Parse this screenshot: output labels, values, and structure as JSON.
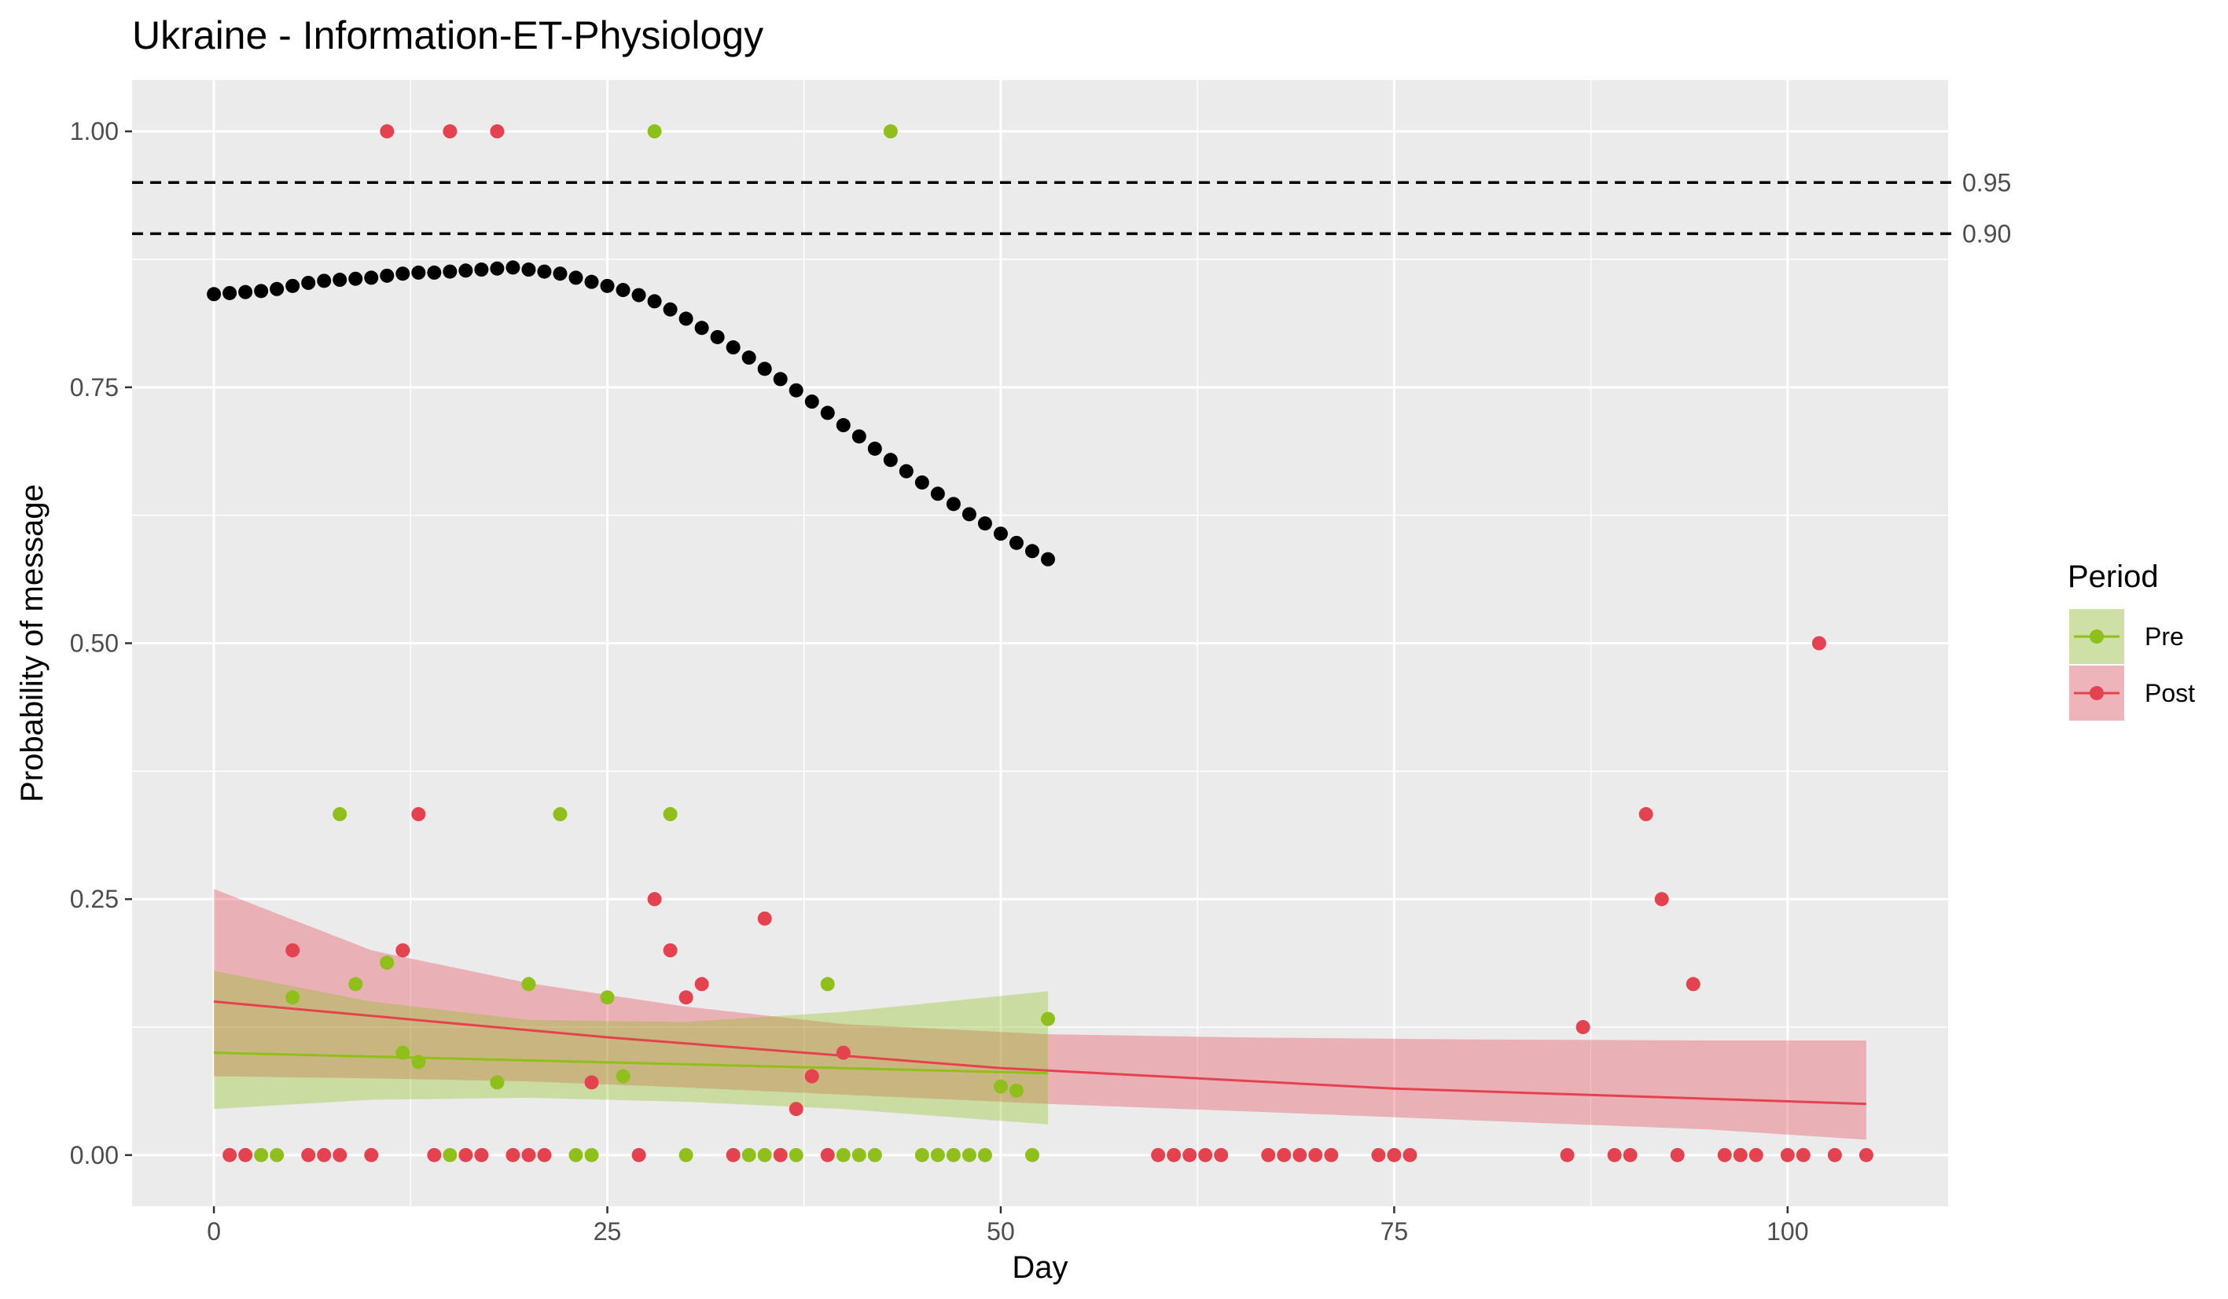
{
  "chart_data": {
    "type": "scatter",
    "title": "Ukraine - Information-ET-Physiology",
    "xlabel": "Day",
    "ylabel": "Probability of message",
    "xlim": [
      -5.2,
      110.2
    ],
    "ylim": [
      -0.05,
      1.05
    ],
    "x_ticks": [
      0,
      25,
      50,
      75,
      100
    ],
    "x_tick_labels": [
      "0",
      "25",
      "50",
      "75",
      "100"
    ],
    "y_ticks": [
      0.0,
      0.25,
      0.5,
      0.75,
      1.0
    ],
    "y_tick_labels": [
      "0.00",
      "0.25",
      "0.50",
      "0.75",
      "1.00"
    ],
    "grid": true,
    "background": "#ebebeb",
    "legend": {
      "title": "Period",
      "position": "right",
      "entries": [
        {
          "label": "Pre",
          "color": "#8fbf1a"
        },
        {
          "label": "Post",
          "color": "#e5424f"
        }
      ]
    },
    "threshold_lines": [
      {
        "y": 0.95,
        "label": "0.95",
        "style": "dashed"
      },
      {
        "y": 0.9,
        "label": "0.90",
        "style": "dashed"
      }
    ],
    "black_series": {
      "color": "#000000",
      "x": [
        0,
        1,
        2,
        3,
        4,
        5,
        6,
        7,
        8,
        9,
        10,
        11,
        12,
        13,
        14,
        15,
        16,
        17,
        18,
        19,
        20,
        21,
        22,
        23,
        24,
        25,
        26,
        27,
        28,
        29,
        30,
        31,
        32,
        33,
        34,
        35,
        36,
        37,
        38,
        39,
        40,
        41,
        42,
        43,
        44,
        45,
        46,
        47,
        48,
        49,
        50,
        51,
        52,
        53
      ],
      "y": [
        0.841,
        0.842,
        0.843,
        0.844,
        0.846,
        0.849,
        0.852,
        0.854,
        0.855,
        0.856,
        0.857,
        0.859,
        0.861,
        0.862,
        0.862,
        0.863,
        0.864,
        0.865,
        0.866,
        0.867,
        0.865,
        0.863,
        0.861,
        0.857,
        0.853,
        0.849,
        0.845,
        0.84,
        0.834,
        0.826,
        0.817,
        0.808,
        0.799,
        0.789,
        0.779,
        0.768,
        0.758,
        0.747,
        0.736,
        0.725,
        0.713,
        0.702,
        0.69,
        0.679,
        0.668,
        0.657,
        0.646,
        0.636,
        0.626,
        0.617,
        0.607,
        0.598,
        0.59,
        0.582
      ]
    },
    "series": [
      {
        "name": "Pre",
        "color": "#8fbf1a",
        "points": [
          [
            3,
            0
          ],
          [
            4,
            0
          ],
          [
            5,
            0.154
          ],
          [
            8,
            0.333
          ],
          [
            9,
            0.167
          ],
          [
            11,
            0.188
          ],
          [
            12,
            0.1
          ],
          [
            13,
            0.091
          ],
          [
            15,
            0
          ],
          [
            18,
            0.071
          ],
          [
            20,
            0.167
          ],
          [
            22,
            0.333
          ],
          [
            23,
            0
          ],
          [
            24,
            0
          ],
          [
            25,
            0.154
          ],
          [
            26,
            0.077
          ],
          [
            28,
            1.0
          ],
          [
            29,
            0.333
          ],
          [
            30,
            0
          ],
          [
            34,
            0
          ],
          [
            35,
            0
          ],
          [
            37,
            0
          ],
          [
            39,
            0.167
          ],
          [
            40,
            0
          ],
          [
            41,
            0
          ],
          [
            42,
            0
          ],
          [
            43,
            1.0
          ],
          [
            45,
            0
          ],
          [
            46,
            0
          ],
          [
            47,
            0
          ],
          [
            48,
            0
          ],
          [
            49,
            0
          ],
          [
            50,
            0.067
          ],
          [
            51,
            0.063
          ],
          [
            52,
            0
          ],
          [
            53,
            0.133
          ]
        ],
        "trend": {
          "x": [
            0,
            53
          ],
          "y": [
            0.1,
            0.08
          ]
        },
        "ribbon": {
          "x": [
            0,
            10,
            20,
            30,
            40,
            53
          ],
          "lower": [
            0.045,
            0.054,
            0.056,
            0.052,
            0.045,
            0.03
          ],
          "upper": [
            0.18,
            0.15,
            0.132,
            0.13,
            0.14,
            0.16
          ]
        }
      },
      {
        "name": "Post",
        "color": "#e5424f",
        "points": [
          [
            1,
            0
          ],
          [
            2,
            0
          ],
          [
            5,
            0.2
          ],
          [
            6,
            0
          ],
          [
            7,
            0
          ],
          [
            8,
            0
          ],
          [
            10,
            0
          ],
          [
            11,
            1.0
          ],
          [
            12,
            0.2
          ],
          [
            13,
            0.333
          ],
          [
            14,
            0
          ],
          [
            15,
            1.0
          ],
          [
            16,
            0
          ],
          [
            17,
            0
          ],
          [
            18,
            1.0
          ],
          [
            19,
            0
          ],
          [
            20,
            0
          ],
          [
            21,
            0
          ],
          [
            24,
            0.071
          ],
          [
            27,
            0
          ],
          [
            28,
            0.25
          ],
          [
            29,
            0.2
          ],
          [
            30,
            0.154
          ],
          [
            31,
            0.167
          ],
          [
            33,
            0
          ],
          [
            35,
            0.231
          ],
          [
            36,
            0
          ],
          [
            37,
            0.045
          ],
          [
            38,
            0.077
          ],
          [
            39,
            0
          ],
          [
            40,
            0.1
          ],
          [
            60,
            0
          ],
          [
            61,
            0
          ],
          [
            62,
            0
          ],
          [
            63,
            0
          ],
          [
            64,
            0
          ],
          [
            67,
            0
          ],
          [
            68,
            0
          ],
          [
            69,
            0
          ],
          [
            70,
            0
          ],
          [
            71,
            0
          ],
          [
            74,
            0
          ],
          [
            75,
            0
          ],
          [
            76,
            0
          ],
          [
            86,
            0
          ],
          [
            87,
            0.125
          ],
          [
            89,
            0
          ],
          [
            90,
            0
          ],
          [
            91,
            0.333
          ],
          [
            92,
            0.25
          ],
          [
            93,
            0
          ],
          [
            94,
            0.167
          ],
          [
            96,
            0
          ],
          [
            97,
            0
          ],
          [
            98,
            0
          ],
          [
            100,
            0
          ],
          [
            101,
            0
          ],
          [
            102,
            0.5
          ],
          [
            103,
            0
          ],
          [
            105,
            0
          ]
        ],
        "trend": {
          "x": [
            0,
            25,
            50,
            75,
            105
          ],
          "y": [
            0.15,
            0.115,
            0.085,
            0.065,
            0.05
          ]
        },
        "ribbon": {
          "x": [
            0,
            10,
            20,
            30,
            40,
            53,
            65,
            80,
            95,
            105
          ],
          "lower": [
            0.077,
            0.075,
            0.072,
            0.066,
            0.059,
            0.05,
            0.043,
            0.034,
            0.025,
            0.015
          ],
          "upper": [
            0.26,
            0.2,
            0.168,
            0.145,
            0.128,
            0.118,
            0.115,
            0.113,
            0.112,
            0.112
          ]
        }
      }
    ]
  }
}
